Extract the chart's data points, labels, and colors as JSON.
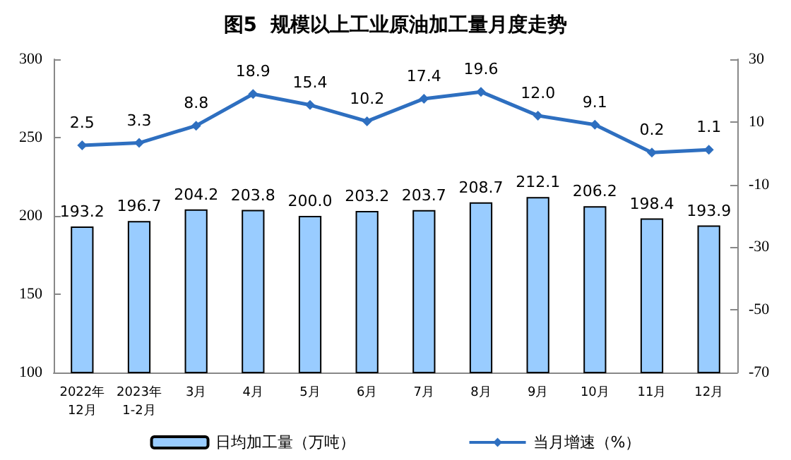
{
  "chart_data": {
    "type": "bar",
    "title": "图5  规模以上工业原油加工量月度走势",
    "categories": [
      "2022年\n12月",
      "2023年\n1-2月",
      "3月",
      "4月",
      "5月",
      "6月",
      "7月",
      "8月",
      "9月",
      "10月",
      "11月",
      "12月"
    ],
    "series": [
      {
        "name": "日均加工量（万吨）",
        "color": "#99ccff",
        "values": [
          193.2,
          196.7,
          204.2,
          203.8,
          200.0,
          203.2,
          203.7,
          208.7,
          212.1,
          206.2,
          198.4,
          193.9
        ],
        "value_labels": [
          "193.2",
          "196.7",
          "204.2",
          "203.8",
          "200.0",
          "203.2",
          "203.7",
          "208.7",
          "212.1",
          "206.2",
          "198.4",
          "193.9"
        ]
      },
      {
        "name": "当月增速（%）",
        "type": "line",
        "axis": "y2",
        "color": "#2e6fc0",
        "marker": "diamond",
        "values": [
          2.5,
          3.3,
          8.8,
          18.9,
          15.4,
          10.2,
          17.4,
          19.6,
          12.0,
          9.1,
          0.2,
          1.1
        ],
        "value_labels": [
          "2.5",
          "3.3",
          "8.8",
          "18.9",
          "15.4",
          "10.2",
          "17.4",
          "19.6",
          "12.0",
          "9.1",
          "0.2",
          "1.1"
        ]
      }
    ],
    "ylim": [
      100,
      300
    ],
    "yticks": [
      100,
      150,
      200,
      250,
      300
    ],
    "y2lim": [
      -70,
      30
    ],
    "y2ticks": [
      -70,
      -50,
      -30,
      -10,
      10,
      30
    ],
    "grid": false,
    "legend": "bottom"
  }
}
